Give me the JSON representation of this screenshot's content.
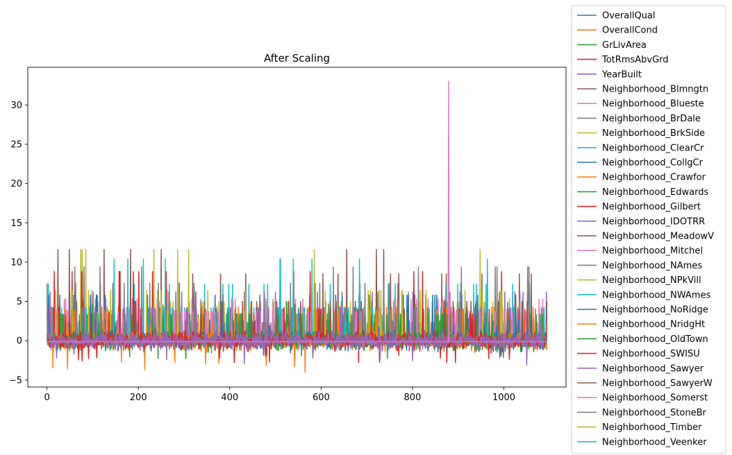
{
  "chart_data": {
    "type": "line",
    "title": "After Scaling",
    "xlabel": "",
    "ylabel": "",
    "xlim": [
      -42,
      1136
    ],
    "ylim": [
      -5.9,
      34.8
    ],
    "xticks": [
      0,
      200,
      400,
      600,
      800,
      1000
    ],
    "yticks": [
      -5,
      0,
      5,
      10,
      15,
      20,
      25,
      30
    ],
    "n_points": 1095,
    "baseline": -0.3,
    "legend_position": "outside-right",
    "series": [
      {
        "name": "OverallQual",
        "color": "#1f77b4",
        "approx_range": [
          -2.2,
          2.8
        ]
      },
      {
        "name": "OverallCond",
        "color": "#ff7f0e",
        "approx_range": [
          -4.2,
          3.0
        ]
      },
      {
        "name": "GrLivArea",
        "color": "#2ca02c",
        "approx_range": [
          -2.3,
          5.2
        ]
      },
      {
        "name": "TotRmsAbvGrd",
        "color": "#d62728",
        "approx_range": [
          -2.8,
          4.6
        ]
      },
      {
        "name": "YearBuilt",
        "color": "#9467bd",
        "approx_range": [
          -3.3,
          1.3
        ]
      },
      {
        "name": "Neighborhood_Blmngtn",
        "color": "#8c564b",
        "spike": 8.5,
        "spike_count": 12
      },
      {
        "name": "Neighborhood_Blueste",
        "color": "#e377c2",
        "spike": 33.0,
        "spike_count": 1,
        "spike_at": [
          879
        ]
      },
      {
        "name": "Neighborhood_BrDale",
        "color": "#7f7f7f",
        "spike": 9.4,
        "spike_count": 12
      },
      {
        "name": "Neighborhood_BrkSide",
        "color": "#bcbd22",
        "spike": 4.9,
        "spike_count": 40
      },
      {
        "name": "Neighborhood_ClearCr",
        "color": "#17becf",
        "spike": 7.2,
        "spike_count": 20
      },
      {
        "name": "Neighborhood_CollgCr",
        "color": "#1f77b4",
        "spike": 2.5,
        "spike_count": 110
      },
      {
        "name": "Neighborhood_Crawfor",
        "color": "#ff7f0e",
        "spike": 4.3,
        "spike_count": 40
      },
      {
        "name": "Neighborhood_Edwards",
        "color": "#2ca02c",
        "spike": 3.4,
        "spike_count": 70
      },
      {
        "name": "Neighborhood_Gilbert",
        "color": "#d62728",
        "spike": 4.0,
        "spike_count": 60
      },
      {
        "name": "Neighborhood_IDOTRR",
        "color": "#9467bd",
        "spike": 6.2,
        "spike_count": 28
      },
      {
        "name": "Neighborhood_MeadowV",
        "color": "#8c564b",
        "spike": 11.6,
        "spike_count": 8
      },
      {
        "name": "Neighborhood_Mitchel",
        "color": "#e377c2",
        "spike": 5.3,
        "spike_count": 36
      },
      {
        "name": "Neighborhood_NAmes",
        "color": "#7f7f7f",
        "spike": 2.3,
        "spike_count": 170
      },
      {
        "name": "Neighborhood_NPkVill",
        "color": "#bcbd22",
        "spike": 11.6,
        "spike_count": 8
      },
      {
        "name": "Neighborhood_NWAmes",
        "color": "#17becf",
        "spike": 4.2,
        "spike_count": 55
      },
      {
        "name": "Neighborhood_NoRidge",
        "color": "#1f77b4",
        "spike": 5.8,
        "spike_count": 30
      },
      {
        "name": "Neighborhood_NridgHt",
        "color": "#ff7f0e",
        "spike": 3.9,
        "spike_count": 55
      },
      {
        "name": "Neighborhood_OldTown",
        "color": "#2ca02c",
        "spike": 3.3,
        "spike_count": 80
      },
      {
        "name": "Neighborhood_SWISU",
        "color": "#d62728",
        "spike": 8.8,
        "spike_count": 15
      },
      {
        "name": "Neighborhood_Sawyer",
        "color": "#9467bd",
        "spike": 4.2,
        "spike_count": 55
      },
      {
        "name": "Neighborhood_SawyerW",
        "color": "#8c564b",
        "spike": 5.0,
        "spike_count": 40
      },
      {
        "name": "Neighborhood_Somerst",
        "color": "#e377c2",
        "spike": 3.7,
        "spike_count": 70
      },
      {
        "name": "Neighborhood_StoneBr",
        "color": "#7f7f7f",
        "spike": 7.3,
        "spike_count": 20
      },
      {
        "name": "Neighborhood_Timber",
        "color": "#bcbd22",
        "spike": 6.4,
        "spike_count": 25
      },
      {
        "name": "Neighborhood_Veenker",
        "color": "#17becf",
        "spike": 10.4,
        "spike_count": 10
      }
    ]
  }
}
